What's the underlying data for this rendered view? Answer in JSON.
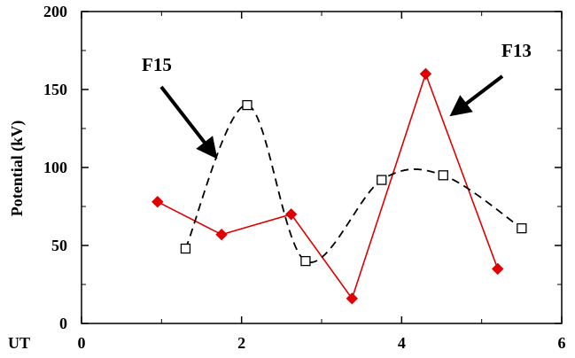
{
  "chart_data": {
    "type": "line",
    "title": "",
    "xlabel": "UT",
    "ylabel": "Potential (kV)",
    "xlim": [
      0,
      6
    ],
    "ylim": [
      0,
      200
    ],
    "x_ticks": [
      0,
      2,
      4,
      6
    ],
    "y_ticks": [
      0,
      50,
      100,
      150,
      200
    ],
    "x_tick_labels": [
      "0",
      "2",
      "4",
      "6"
    ],
    "y_tick_labels": [
      "0",
      "50",
      "100",
      "150",
      "200"
    ],
    "grid": false,
    "legend": "none",
    "series": [
      {
        "name": "F13",
        "color": "#e00000",
        "line_style": "solid",
        "marker": "filled-diamond",
        "points": [
          [
            0.95,
            78
          ],
          [
            1.75,
            57
          ],
          [
            2.62,
            70
          ],
          [
            3.38,
            16
          ],
          [
            4.3,
            160
          ],
          [
            5.2,
            35
          ]
        ]
      },
      {
        "name": "F15",
        "color": "#000000",
        "line_style": "dashed-smooth",
        "marker": "open-square",
        "points": [
          [
            1.3,
            48
          ],
          [
            2.07,
            140
          ],
          [
            2.8,
            40
          ],
          [
            3.75,
            92
          ],
          [
            4.52,
            95
          ],
          [
            5.5,
            61
          ]
        ]
      }
    ],
    "annotations": [
      {
        "text": "F15",
        "points_to_series": "F15",
        "arrow": "black-thick"
      },
      {
        "text": "F13",
        "points_to_series": "F13",
        "arrow": "black-thick"
      }
    ]
  }
}
